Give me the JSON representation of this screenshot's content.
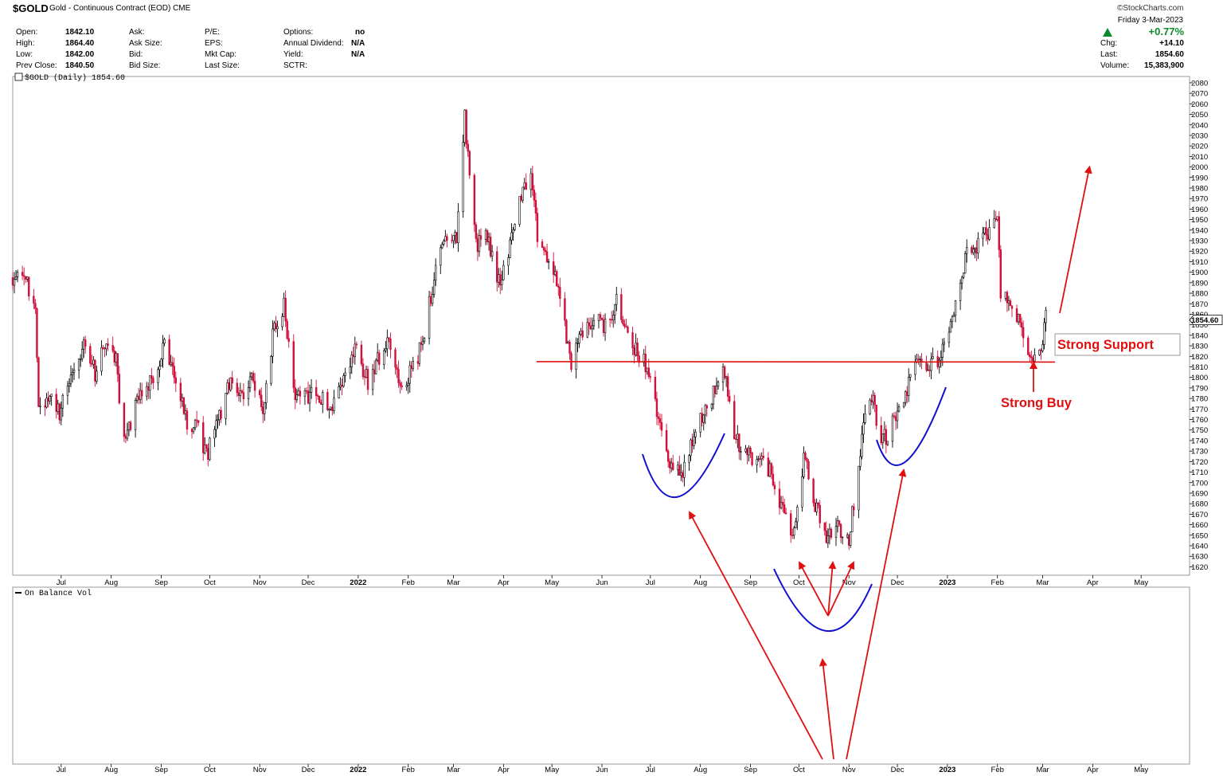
{
  "header": {
    "symbol": "$GOLD",
    "contract": "Gold - Continuous Contract (EOD)",
    "exchange": "CME",
    "brand": "©StockCharts.com",
    "quote_left": [
      {
        "label": "Open:",
        "value": "1842.10"
      },
      {
        "label": "High:",
        "value": "1864.40"
      },
      {
        "label": "Low:",
        "value": "1842.00"
      },
      {
        "label": "Prev Close:",
        "value": "1840.50"
      }
    ],
    "quote_mid": [
      "Ask:",
      "Ask Size:",
      "Bid:",
      "Bid Size:"
    ],
    "quote_mid2": [
      "P/E:",
      "EPS:",
      "Mkt Cap:",
      "Last Size:"
    ],
    "quote_right": [
      {
        "label": "Options:",
        "value": "no"
      },
      {
        "label": "Annual Dividend:",
        "value": "N/A"
      },
      {
        "label": "Yield:",
        "value": "N/A"
      },
      {
        "label": "SCTR:",
        "value": ""
      }
    ],
    "date": "Friday  3-Mar-2023",
    "pct_change": "+0.77%",
    "chg_label": "Chg:",
    "chg_value": "+14.10",
    "last_label": "Last:",
    "last_value": "1854.60",
    "volume_label": "Volume:",
    "volume_value": "15,383,900",
    "up_color": "#0a8a2a"
  },
  "chart_data": {
    "type": "candlestick",
    "title": "$GOLD (Daily) 1854.60",
    "y_ticks": [
      1620,
      1630,
      1640,
      1650,
      1660,
      1670,
      1680,
      1690,
      1700,
      1710,
      1720,
      1730,
      1740,
      1750,
      1760,
      1770,
      1780,
      1790,
      1800,
      1810,
      1820,
      1830,
      1840,
      1850,
      1860,
      1870,
      1880,
      1890,
      1900,
      1910,
      1920,
      1930,
      1940,
      1950,
      1960,
      1970,
      1980,
      1990,
      2000,
      2010,
      2020,
      2030,
      2040,
      2050,
      2060,
      2070,
      2080
    ],
    "ylim": [
      1612,
      2086
    ],
    "last_price_tag": "1854.60",
    "x_ticks": [
      "Jul",
      "Aug",
      "Sep",
      "Oct",
      "Nov",
      "Dec",
      "2022",
      "Feb",
      "Mar",
      "Apr",
      "May",
      "Jun",
      "Jul",
      "Aug",
      "Sep",
      "Oct",
      "Nov",
      "Dec",
      "2023",
      "Feb",
      "Mar",
      "Apr",
      "May"
    ],
    "xlim": [
      "2021-06-01",
      "2023-05-31"
    ],
    "x_tick_dates": [
      "2021-07-01",
      "2021-08-01",
      "2021-09-01",
      "2021-10-01",
      "2021-11-01",
      "2021-12-01",
      "2022-01-01",
      "2022-02-01",
      "2022-03-01",
      "2022-04-01",
      "2022-05-01",
      "2022-06-01",
      "2022-07-01",
      "2022-08-01",
      "2022-09-01",
      "2022-10-01",
      "2022-11-01",
      "2022-12-01",
      "2023-01-01",
      "2023-02-01",
      "2023-03-01",
      "2023-04-01",
      "2023-05-01"
    ],
    "up_color": "#000000",
    "down_color": "#d0103a",
    "price_path": [
      [
        "2021-06-01",
        1895
      ],
      [
        "2021-06-08",
        1900
      ],
      [
        "2021-06-15",
        1860
      ],
      [
        "2021-06-17",
        1775
      ],
      [
        "2021-06-25",
        1780
      ],
      [
        "2021-06-30",
        1765
      ],
      [
        "2021-07-08",
        1805
      ],
      [
        "2021-07-15",
        1830
      ],
      [
        "2021-07-22",
        1805
      ],
      [
        "2021-07-29",
        1830
      ],
      [
        "2021-08-04",
        1815
      ],
      [
        "2021-08-09",
        1735
      ],
      [
        "2021-08-12",
        1755
      ],
      [
        "2021-08-20",
        1785
      ],
      [
        "2021-08-27",
        1800
      ],
      [
        "2021-09-03",
        1830
      ],
      [
        "2021-09-10",
        1795
      ],
      [
        "2021-09-17",
        1755
      ],
      [
        "2021-09-24",
        1750
      ],
      [
        "2021-09-29",
        1725
      ],
      [
        "2021-10-06",
        1760
      ],
      [
        "2021-10-14",
        1795
      ],
      [
        "2021-10-21",
        1785
      ],
      [
        "2021-10-28",
        1800
      ],
      [
        "2021-11-03",
        1765
      ],
      [
        "2021-11-10",
        1850
      ],
      [
        "2021-11-16",
        1870
      ],
      [
        "2021-11-23",
        1785
      ],
      [
        "2021-11-30",
        1780
      ],
      [
        "2021-12-08",
        1785
      ],
      [
        "2021-12-15",
        1770
      ],
      [
        "2021-12-22",
        1800
      ],
      [
        "2021-12-31",
        1828
      ],
      [
        "2022-01-07",
        1795
      ],
      [
        "2022-01-14",
        1820
      ],
      [
        "2022-01-21",
        1835
      ],
      [
        "2022-01-27",
        1795
      ],
      [
        "2022-02-03",
        1805
      ],
      [
        "2022-02-10",
        1835
      ],
      [
        "2022-02-17",
        1895
      ],
      [
        "2022-02-24",
        1930
      ],
      [
        "2022-03-03",
        1935
      ],
      [
        "2022-03-08",
        2050
      ],
      [
        "2022-03-11",
        1985
      ],
      [
        "2022-03-16",
        1925
      ],
      [
        "2022-03-22",
        1935
      ],
      [
        "2022-03-29",
        1890
      ],
      [
        "2022-04-05",
        1925
      ],
      [
        "2022-04-12",
        1975
      ],
      [
        "2022-04-18",
        1985
      ],
      [
        "2022-04-22",
        1935
      ],
      [
        "2022-04-29",
        1910
      ],
      [
        "2022-05-06",
        1880
      ],
      [
        "2022-05-13",
        1810
      ],
      [
        "2022-05-20",
        1845
      ],
      [
        "2022-05-27",
        1855
      ],
      [
        "2022-06-03",
        1850
      ],
      [
        "2022-06-10",
        1870
      ],
      [
        "2022-06-16",
        1840
      ],
      [
        "2022-06-23",
        1825
      ],
      [
        "2022-06-30",
        1805
      ],
      [
        "2022-07-05",
        1765
      ],
      [
        "2022-07-12",
        1725
      ],
      [
        "2022-07-18",
        1710
      ],
      [
        "2022-07-21",
        1705
      ],
      [
        "2022-07-27",
        1740
      ],
      [
        "2022-08-03",
        1765
      ],
      [
        "2022-08-10",
        1790
      ],
      [
        "2022-08-16",
        1805
      ],
      [
        "2022-08-22",
        1745
      ],
      [
        "2022-08-30",
        1725
      ],
      [
        "2022-09-07",
        1725
      ],
      [
        "2022-09-13",
        1710
      ],
      [
        "2022-09-20",
        1680
      ],
      [
        "2022-09-27",
        1645
      ],
      [
        "2022-10-04",
        1725
      ],
      [
        "2022-10-11",
        1680
      ],
      [
        "2022-10-18",
        1650
      ],
      [
        "2022-10-25",
        1660
      ],
      [
        "2022-11-01",
        1645
      ],
      [
        "2022-11-04",
        1680
      ],
      [
        "2022-11-10",
        1755
      ],
      [
        "2022-11-15",
        1780
      ],
      [
        "2022-11-22",
        1740
      ],
      [
        "2022-11-30",
        1760
      ],
      [
        "2022-12-06",
        1785
      ],
      [
        "2022-12-13",
        1815
      ],
      [
        "2022-12-20",
        1810
      ],
      [
        "2022-12-30",
        1825
      ],
      [
        "2023-01-06",
        1870
      ],
      [
        "2023-01-13",
        1920
      ],
      [
        "2023-01-20",
        1925
      ],
      [
        "2023-01-26",
        1940
      ],
      [
        "2023-02-01",
        1945
      ],
      [
        "2023-02-03",
        1880
      ],
      [
        "2023-02-10",
        1870
      ],
      [
        "2023-02-17",
        1840
      ],
      [
        "2023-02-24",
        1815
      ],
      [
        "2023-02-28",
        1830
      ],
      [
        "2023-03-03",
        1855
      ]
    ],
    "annotations": {
      "support_level": 1815,
      "support_label": "Strong Support",
      "buy_label": "Strong Buy",
      "target_arrow_end": [
        "2023-03-31",
        2000
      ]
    },
    "lower_panel": {
      "title": "On Balance Vol"
    }
  }
}
